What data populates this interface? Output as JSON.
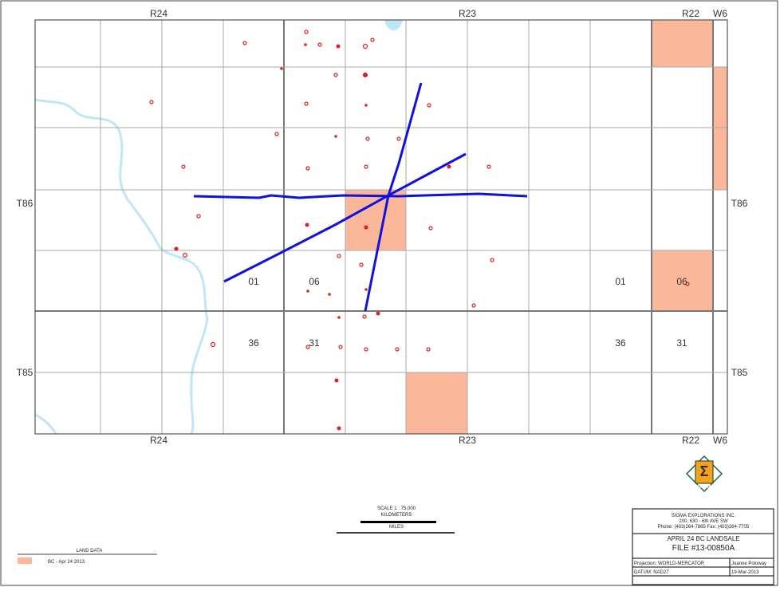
{
  "map": {
    "range_labels": {
      "top": [
        "R24",
        "R23",
        "R22",
        "W6"
      ],
      "bottom": [
        "R24",
        "R23",
        "R22",
        "W6"
      ]
    },
    "township_labels": {
      "left": [
        "T86",
        "T85"
      ],
      "right": [
        "T86",
        "T85"
      ]
    },
    "section_labels": [
      "01",
      "06",
      "01",
      "06",
      "36",
      "31",
      "36",
      "31"
    ]
  },
  "scale_bar": {
    "scale": "SCALE 1 : 75,000",
    "upper_unit": "KILOMETERS",
    "lower_unit": "MILES"
  },
  "logo": {
    "text": "SIGMA"
  },
  "legend": {
    "title": "LAND DATA",
    "items": [
      "BC - Apr 24 2013"
    ]
  },
  "title_block": {
    "company": "SIGMA EXPLORATIONS INC.",
    "address": "200, 630 - 6th AVE SW",
    "phone": "Phone: (403)264-7865   Fax: (403)264-7705",
    "title": "APRIL 24 BC LANDSALE",
    "file": "FILE #13-00850A",
    "projection": "Projection: WORLD-MERCATOR",
    "author": "Joanne Poloway",
    "datum": "DATUM: NAD27",
    "date": "19-Mar-2013"
  }
}
